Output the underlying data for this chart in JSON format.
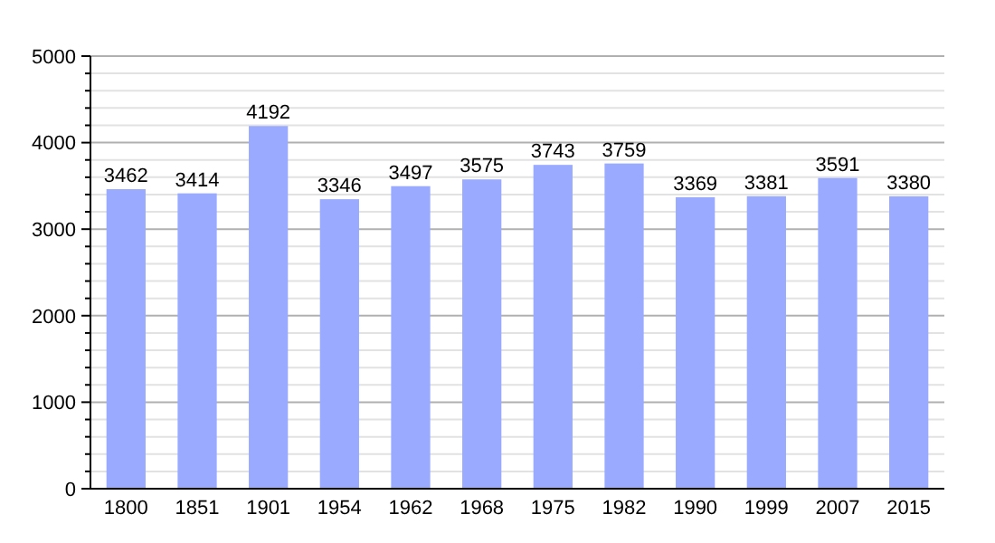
{
  "chart_data": {
    "type": "bar",
    "categories": [
      "1800",
      "1851",
      "1901",
      "1954",
      "1962",
      "1968",
      "1975",
      "1982",
      "1990",
      "1999",
      "2007",
      "2015"
    ],
    "values": [
      3462,
      3414,
      4192,
      3346,
      3497,
      3575,
      3743,
      3759,
      3369,
      3381,
      3591,
      3380
    ],
    "color": "#99aaff",
    "data_labels": true,
    "grid": true,
    "ylim": [
      0,
      5000
    ],
    "yticks": [
      0,
      {
        "value": 200,
        "label": null
      },
      {
        "value": 400,
        "label": null
      },
      {
        "value": 600,
        "label": null
      },
      {
        "value": 800,
        "label": null
      },
      1000,
      {
        "value": 1200,
        "label": null
      },
      {
        "value": 1400,
        "label": null
      },
      {
        "value": 1600,
        "label": null
      },
      {
        "value": 1800,
        "label": null
      },
      2000,
      {
        "value": 2200,
        "label": null
      },
      {
        "value": 2400,
        "label": null
      },
      {
        "value": 2600,
        "label": null
      },
      {
        "value": 2800,
        "label": null
      },
      3000,
      {
        "value": 3200,
        "label": null
      },
      {
        "value": 3400,
        "label": null
      },
      {
        "value": 3600,
        "label": null
      },
      {
        "value": 3800,
        "label": null
      },
      4000,
      {
        "value": 4200,
        "label": null
      },
      {
        "value": 4400,
        "label": null
      },
      {
        "value": 4600,
        "label": null
      },
      {
        "value": 4800,
        "label": null
      },
      5000
    ]
  }
}
